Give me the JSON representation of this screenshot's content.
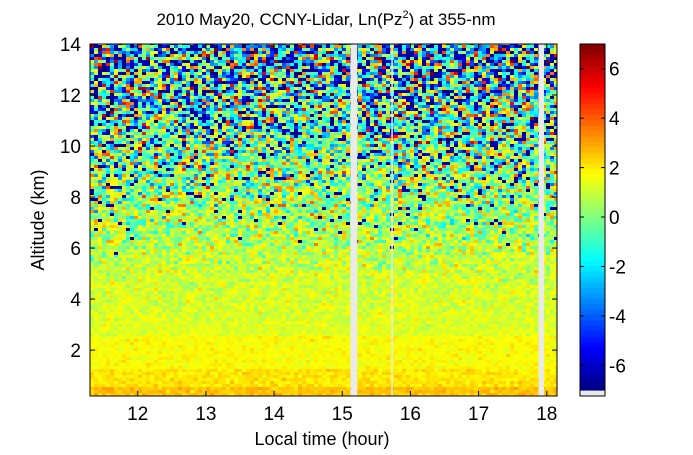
{
  "chart_data": {
    "type": "heatmap",
    "title": {
      "prefix": "2010 May20, CCNY-Lidar, Ln(Pz",
      "superscript": "2",
      "suffix": ") at 355-nm"
    },
    "xlabel": "Local time (hour)",
    "ylabel": "Altitude (km)",
    "xlim": [
      11.3,
      18.15
    ],
    "ylim": [
      0.2,
      14
    ],
    "xticks": [
      12,
      13,
      14,
      15,
      16,
      17,
      18
    ],
    "yticks": [
      2,
      4,
      6,
      8,
      10,
      12,
      14
    ],
    "data_gaps": [
      {
        "start": 15.12,
        "end": 15.22
      },
      {
        "start": 15.72,
        "end": 15.74
      },
      {
        "start": 17.88,
        "end": 17.96
      }
    ],
    "colorbar": {
      "colormap": "jet",
      "range": [
        -7,
        7
      ],
      "ticks": [
        -6,
        -4,
        -2,
        0,
        2,
        4,
        6
      ]
    },
    "colors": {
      "gap": "#eaeaea",
      "axis": "#000000",
      "background": "#ffffff"
    }
  }
}
